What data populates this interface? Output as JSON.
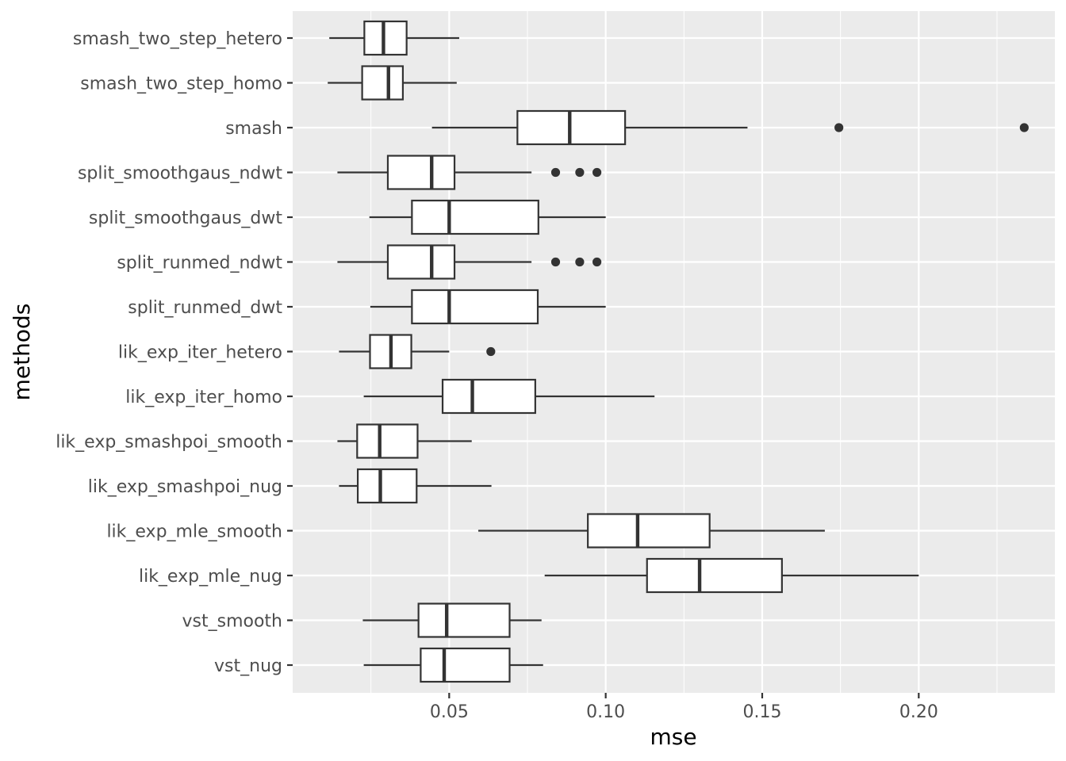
{
  "chart_data": {
    "type": "boxplot",
    "orientation": "horizontal",
    "xlabel": "mse",
    "ylabel": "methods",
    "xlim": [
      0.0,
      0.2435
    ],
    "x_ticks": [
      0.05,
      0.1,
      0.15,
      0.2
    ],
    "x_tick_labels": [
      "0.05",
      "0.10",
      "0.15",
      "0.20"
    ],
    "grid": true,
    "colors": {
      "panel": "#ebebeb",
      "grid": "#ffffff",
      "box_stroke": "#333333",
      "box_fill": "#ffffff"
    },
    "categories": [
      "smash_two_step_hetero",
      "smash_two_step_homo",
      "smash",
      "split_smoothgaus_ndwt",
      "split_smoothgaus_dwt",
      "split_runmed_ndwt",
      "split_runmed_dwt",
      "lik_exp_iter_hetero",
      "lik_exp_iter_homo",
      "lik_exp_smashpoi_smooth",
      "lik_exp_smashpoi_nug",
      "lik_exp_mle_smooth",
      "lik_exp_mle_nug",
      "vst_smooth",
      "vst_nug"
    ],
    "boxes": [
      {
        "method": "smash_two_step_hetero",
        "min": 0.0117,
        "q1": 0.0229,
        "median": 0.029,
        "q3": 0.0364,
        "max": 0.0532,
        "outliers": []
      },
      {
        "method": "smash_two_step_homo",
        "min": 0.0112,
        "q1": 0.0222,
        "median": 0.0306,
        "q3": 0.0352,
        "max": 0.0524,
        "outliers": []
      },
      {
        "method": "smash",
        "min": 0.0445,
        "q1": 0.0718,
        "median": 0.0885,
        "q3": 0.1062,
        "max": 0.1453,
        "outliers": [
          0.1745,
          0.2337
        ]
      },
      {
        "method": "split_smoothgaus_ndwt",
        "min": 0.0143,
        "q1": 0.0304,
        "median": 0.0444,
        "q3": 0.0517,
        "max": 0.0763,
        "outliers": [
          0.084,
          0.0917,
          0.0972
        ]
      },
      {
        "method": "split_smoothgaus_dwt",
        "min": 0.0245,
        "q1": 0.0381,
        "median": 0.05,
        "q3": 0.0785,
        "max": 0.1,
        "outliers": []
      },
      {
        "method": "split_runmed_ndwt",
        "min": 0.0143,
        "q1": 0.0304,
        "median": 0.0444,
        "q3": 0.0517,
        "max": 0.0763,
        "outliers": [
          0.084,
          0.0917,
          0.0972
        ]
      },
      {
        "method": "split_runmed_dwt",
        "min": 0.0248,
        "q1": 0.0381,
        "median": 0.05,
        "q3": 0.0783,
        "max": 0.1,
        "outliers": []
      },
      {
        "method": "lik_exp_iter_hetero",
        "min": 0.0148,
        "q1": 0.0247,
        "median": 0.0314,
        "q3": 0.0379,
        "max": 0.05,
        "outliers": [
          0.0633
        ]
      },
      {
        "method": "lik_exp_iter_homo",
        "min": 0.0227,
        "q1": 0.0479,
        "median": 0.0574,
        "q3": 0.0775,
        "max": 0.1156,
        "outliers": []
      },
      {
        "method": "lik_exp_smashpoi_smooth",
        "min": 0.0143,
        "q1": 0.0206,
        "median": 0.0278,
        "q3": 0.0399,
        "max": 0.0572,
        "outliers": []
      },
      {
        "method": "lik_exp_smashpoi_nug",
        "min": 0.0148,
        "q1": 0.0208,
        "median": 0.028,
        "q3": 0.0396,
        "max": 0.0635,
        "outliers": []
      },
      {
        "method": "lik_exp_mle_smooth",
        "min": 0.0593,
        "q1": 0.0943,
        "median": 0.1102,
        "q3": 0.1332,
        "max": 0.17,
        "outliers": []
      },
      {
        "method": "lik_exp_mle_nug",
        "min": 0.0805,
        "q1": 0.1132,
        "median": 0.13,
        "q3": 0.1563,
        "max": 0.2,
        "outliers": []
      },
      {
        "method": "vst_smooth",
        "min": 0.0224,
        "q1": 0.0402,
        "median": 0.0492,
        "q3": 0.0693,
        "max": 0.0795,
        "outliers": []
      },
      {
        "method": "vst_nug",
        "min": 0.0227,
        "q1": 0.0409,
        "median": 0.0484,
        "q3": 0.0693,
        "max": 0.08,
        "outliers": []
      }
    ]
  }
}
